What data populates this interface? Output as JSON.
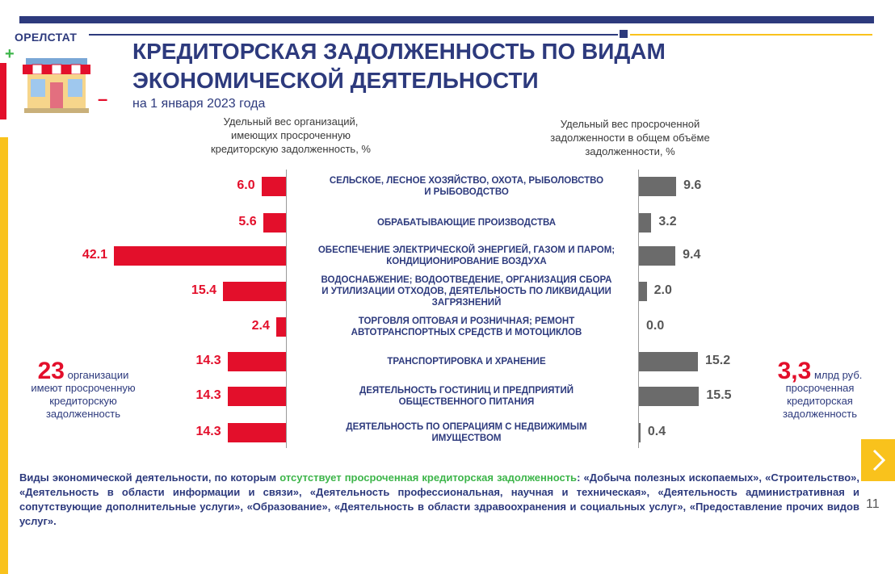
{
  "brand": "ОРЕЛСТАТ",
  "title_line1": "КРЕДИТОРСКАЯ ЗАДОЛЖЕННОСТЬ ПО ВИДАМ",
  "title_line2": "ЭКОНОМИЧЕСКОЙ ДЕЯТЕЛЬНОСТИ",
  "subtitle": "на 1 января 2023 года",
  "colors": {
    "accent_red": "#e30f2b",
    "navy": "#2d3a7d",
    "gray_bar": "#6b6b6b",
    "green": "#3db54a",
    "yellow": "#f9c21c"
  },
  "chart_data": {
    "type": "bar",
    "orientation": "horizontal-butterfly",
    "left_header": [
      "Удельный вес организаций,",
      "имеющих просроченную",
      "кредиторскую задолженность, %"
    ],
    "right_header": [
      "Удельный вес просроченной",
      "задолженности в общем объёме",
      "задолженности, %"
    ],
    "categories": [
      [
        "СЕЛЬСКОЕ, ЛЕСНОЕ ХОЗЯЙСТВО, ОХОТА, РЫБОЛОВСТВО",
        "И РЫБОВОДСТВО"
      ],
      [
        "ОБРАБАТЫВАЮЩИЕ ПРОИЗВОДСТВА"
      ],
      [
        "ОБЕСПЕЧЕНИЕ ЭЛЕКТРИЧЕСКОЙ ЭНЕРГИЕЙ, ГАЗОМ И ПАРОМ;",
        "КОНДИЦИОНИРОВАНИЕ ВОЗДУХА"
      ],
      [
        "ВОДОСНАБЖЕНИЕ; ВОДООТВЕДЕНИЕ, ОРГАНИЗАЦИЯ СБОРА",
        "И УТИЛИЗАЦИИ ОТХОДОВ, ДЕЯТЕЛЬНОСТЬ ПО ЛИКВИДАЦИИ",
        "ЗАГРЯЗНЕНИЙ"
      ],
      [
        "ТОРГОВЛЯ ОПТОВАЯ И РОЗНИЧНАЯ; РЕМОНТ",
        "АВТОТРАНСПОРТНЫХ СРЕДСТВ И МОТОЦИКЛОВ"
      ],
      [
        "ТРАНСПОРТИРОВКА И ХРАНЕНИЕ"
      ],
      [
        "ДЕЯТЕЛЬНОСТЬ ГОСТИНИЦ И ПРЕДПРИЯТИЙ",
        "ОБЩЕСТВЕННОГО ПИТАНИЯ"
      ],
      [
        "ДЕЯТЕЛЬНОСТЬ ПО ОПЕРАЦИЯМ С НЕДВИЖИМЫМ",
        "ИМУЩЕСТВОМ"
      ]
    ],
    "series": [
      {
        "name": "Удельный вес организаций, имеющих просроченную кредиторскую задолженность, %",
        "values": [
          6.0,
          5.6,
          42.1,
          15.4,
          2.4,
          14.3,
          14.3,
          14.3
        ],
        "labels": [
          "6.0",
          "5.6",
          "42.1",
          "15.4",
          "2.4",
          "14.3",
          "14.3",
          "14.3"
        ]
      },
      {
        "name": "Удельный вес просроченной задолженности в общем объёме задолженности, %",
        "values": [
          9.6,
          3.2,
          9.4,
          2.0,
          0.0,
          15.2,
          15.5,
          0.4
        ],
        "labels": [
          "9.6",
          "3.2",
          "9.4",
          "2.0",
          "0.0",
          "15.2",
          "15.5",
          "0.4"
        ]
      }
    ]
  },
  "left_note": {
    "number": "23",
    "text1": "организации",
    "text2": "имеют просроченную",
    "text3": "кредиторскую",
    "text4": "задолженность"
  },
  "right_note": {
    "number": "3,3",
    "unit": "млрд руб.",
    "text1": "просроченная",
    "text2": "кредиторская",
    "text3": "задолженность"
  },
  "footer": {
    "part1": "Виды экономической деятельности, по которым ",
    "highlight": "отсутствует просроченная кредиторская задолженность",
    "part2": ": «Добыча полезных ископаемых», «Строительство», «Деятельность в области информации и связи», «Деятельность профессиональная, научная и техническая», «Деятельность административная и сопутствующие дополнительные услуги», «Образование», «Деятельность в области здравоохранения и социальных услуг», «Предоставление прочих видов услуг»."
  },
  "page_number": "11"
}
